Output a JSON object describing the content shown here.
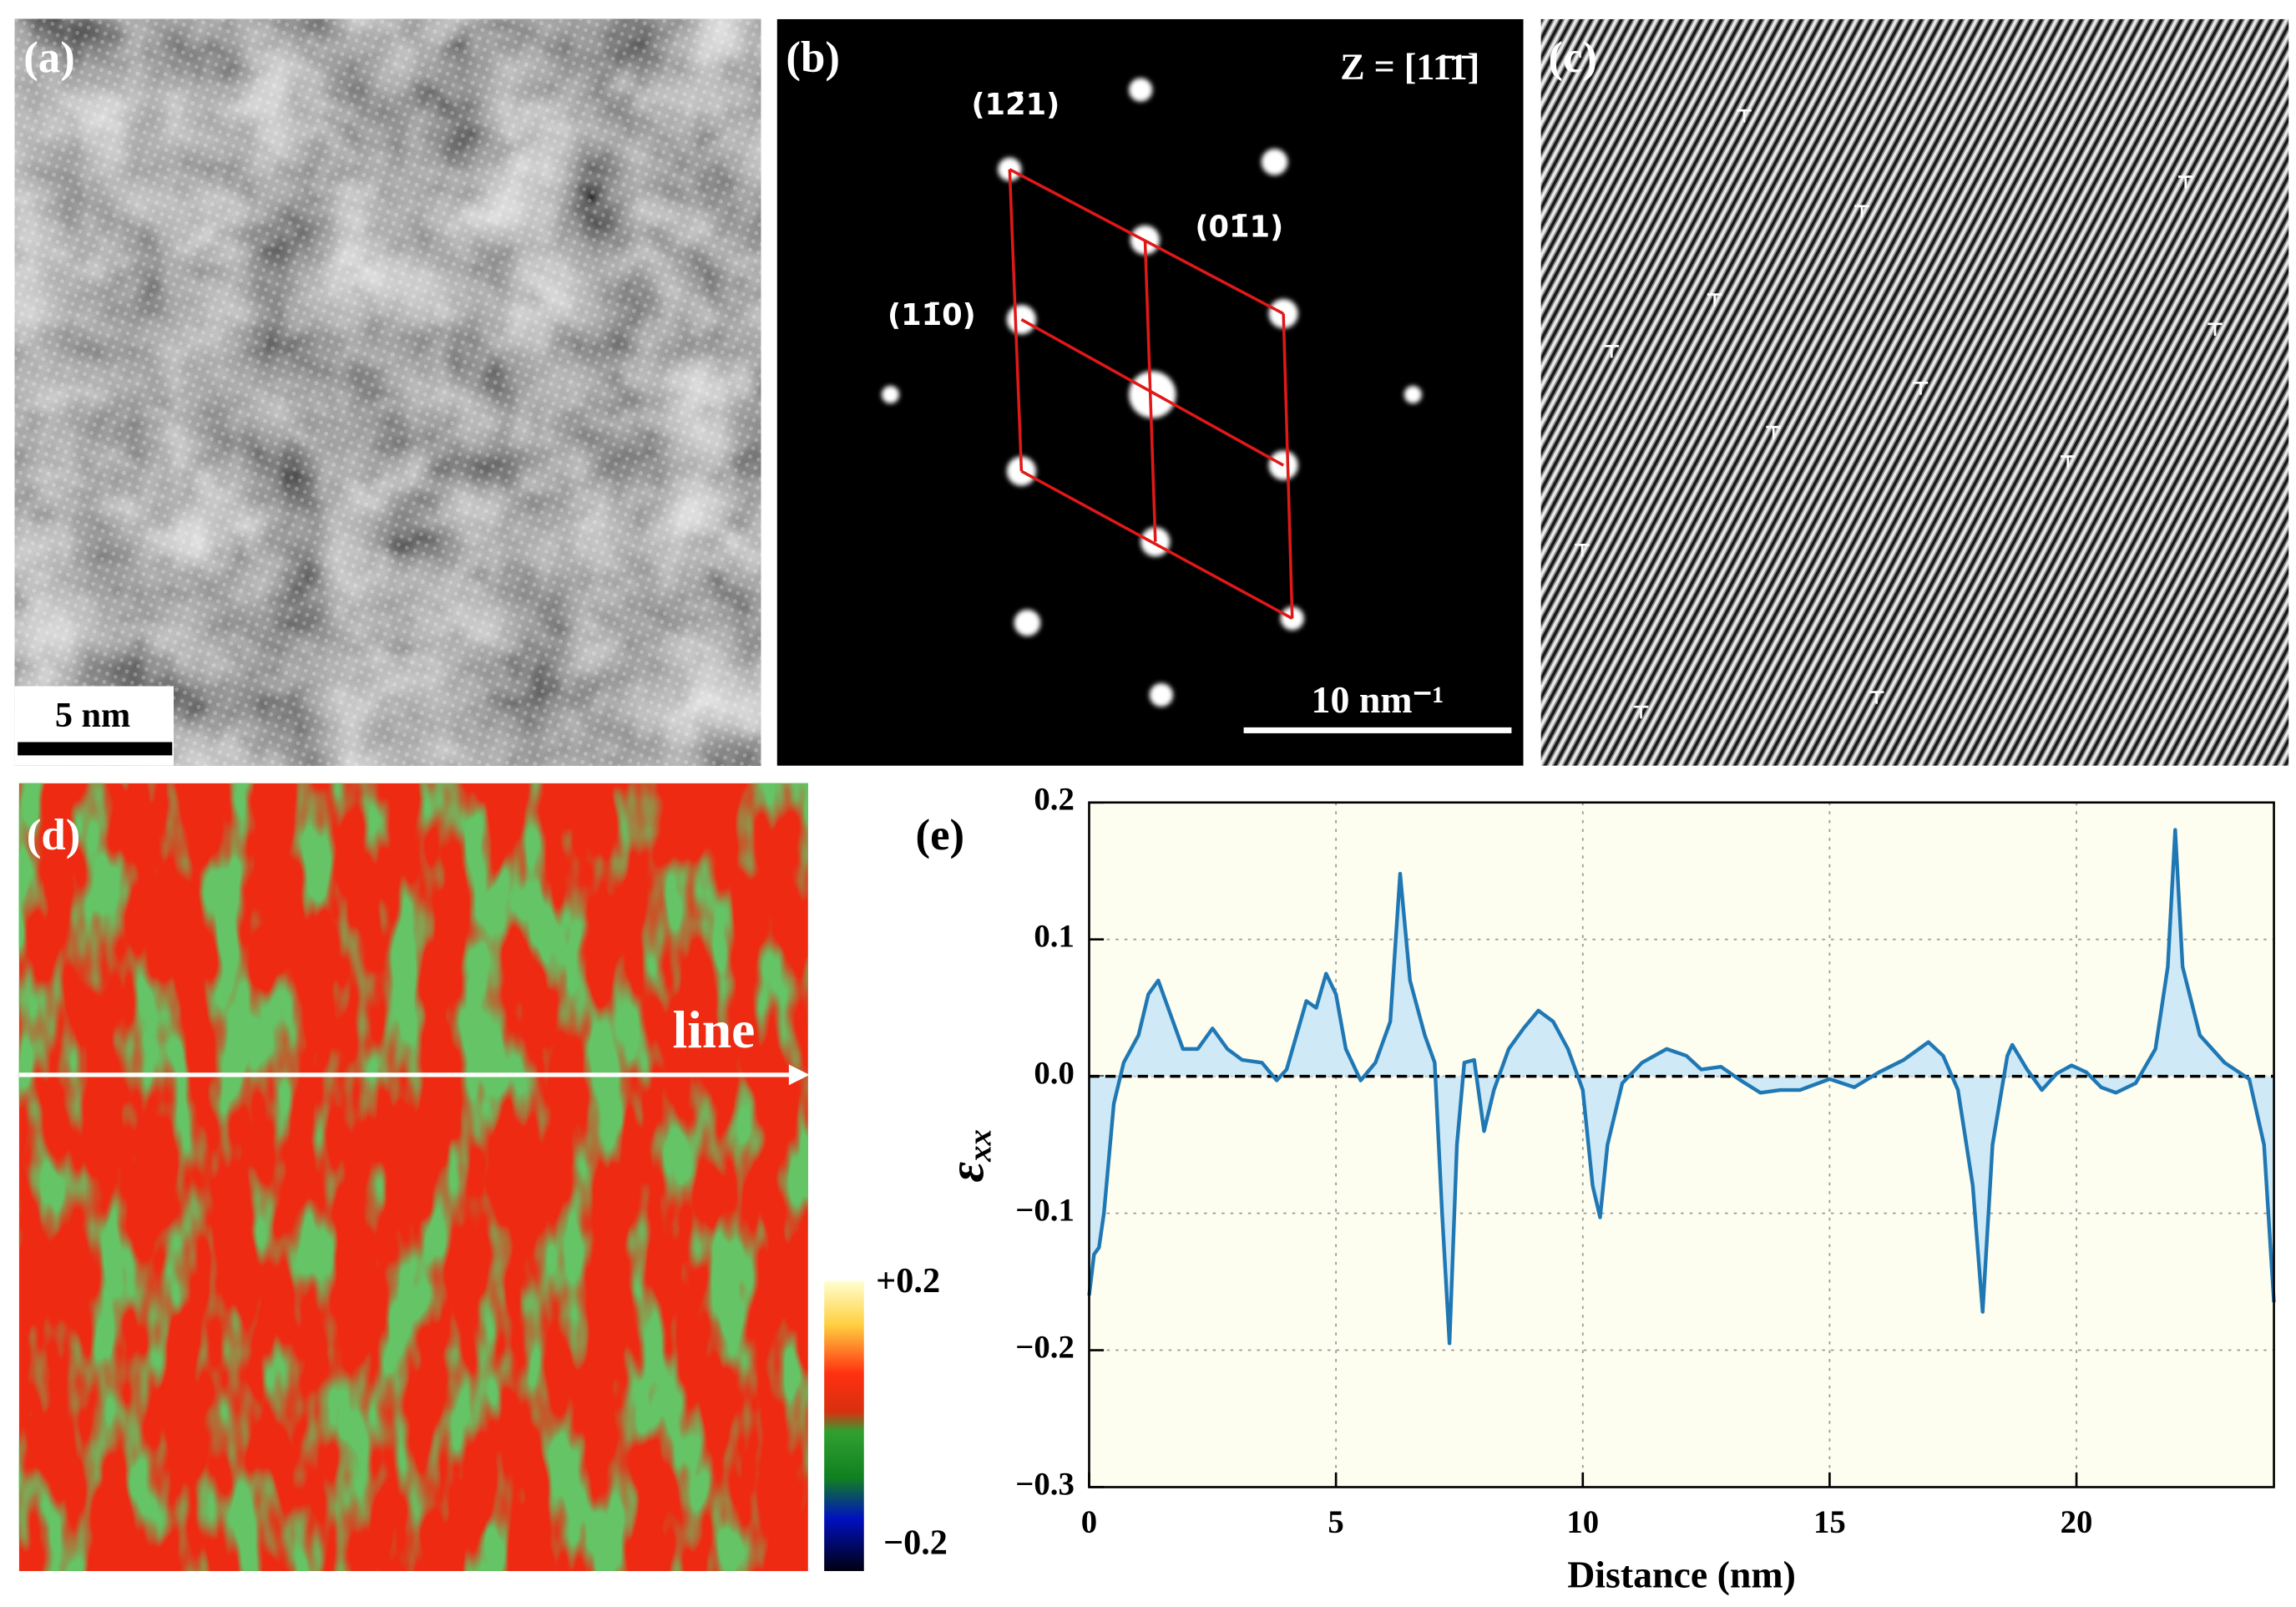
{
  "panels": {
    "a": {
      "label": "(a)",
      "scale_bar": "5 nm"
    },
    "b": {
      "label": "(b)",
      "zone_axis": "Z = [11̄1̄]",
      "spots": [
        "(12̄1)",
        "(01̄1)",
        "(11̄0)"
      ],
      "scale_bar": "10  nm⁻¹"
    },
    "c": {
      "label": "(c)"
    },
    "d": {
      "label": "(d)",
      "line_label": "line",
      "colorbar_max": "+0.2",
      "colorbar_min": "−0.2"
    },
    "e": {
      "label": "(e)"
    }
  },
  "chart_data": {
    "type": "line",
    "x_label": "Distance (nm)",
    "y_label": "ε",
    "y_label_sub": "xx",
    "color": "#1f78b4",
    "fill_color": "#cfe9f6",
    "background": "#fdfdf0",
    "grid": true,
    "zero_line": true,
    "xlim": [
      0,
      24
    ],
    "ylim": [
      -0.3,
      0.2
    ],
    "xticks": [
      0,
      5,
      10,
      15,
      20
    ],
    "yticks": [
      {
        "value": -0.3,
        "label": "−0.3"
      },
      {
        "value": -0.2,
        "label": "−0.2"
      },
      {
        "value": -0.1,
        "label": "−0.1"
      },
      {
        "value": 0,
        "label": "0.0"
      },
      0.1,
      0.2
    ],
    "x": [
      0,
      0.1,
      0.2,
      0.3,
      0.5,
      0.7,
      1.0,
      1.2,
      1.4,
      1.6,
      1.9,
      2.2,
      2.5,
      2.8,
      3.1,
      3.5,
      3.8,
      4.0,
      4.2,
      4.4,
      4.6,
      4.8,
      5.0,
      5.2,
      5.5,
      5.8,
      6.1,
      6.3,
      6.5,
      6.8,
      7.0,
      7.15,
      7.3,
      7.45,
      7.6,
      7.8,
      8.0,
      8.2,
      8.5,
      8.8,
      9.1,
      9.4,
      9.7,
      10.0,
      10.2,
      10.35,
      10.5,
      10.8,
      11.2,
      11.7,
      12.1,
      12.4,
      12.8,
      13.2,
      13.6,
      14.0,
      14.4,
      15.0,
      15.5,
      16.0,
      16.5,
      17.0,
      17.3,
      17.6,
      17.9,
      18.1,
      18.3,
      18.6,
      18.7,
      19.0,
      19.3,
      19.6,
      19.9,
      20.2,
      20.5,
      20.8,
      21.2,
      21.6,
      21.85,
      22.0,
      22.15,
      22.5,
      23.0,
      23.5,
      23.8,
      24.0
    ],
    "values": [
      -0.16,
      -0.13,
      -0.125,
      -0.1,
      -0.02,
      0.01,
      0.03,
      0.06,
      0.07,
      0.05,
      0.02,
      0.02,
      0.035,
      0.02,
      0.012,
      0.01,
      -0.003,
      0.005,
      0.03,
      0.055,
      0.05,
      0.075,
      0.06,
      0.02,
      -0.003,
      0.01,
      0.04,
      0.148,
      0.07,
      0.03,
      0.01,
      -0.1,
      -0.195,
      -0.05,
      0.01,
      0.012,
      -0.04,
      -0.01,
      0.02,
      0.035,
      0.048,
      0.04,
      0.02,
      -0.01,
      -0.08,
      -0.103,
      -0.05,
      -0.005,
      0.01,
      0.02,
      0.015,
      0.005,
      0.007,
      -0.003,
      -0.012,
      -0.01,
      -0.01,
      -0.002,
      -0.008,
      0.003,
      0.012,
      0.025,
      0.015,
      -0.01,
      -0.08,
      -0.172,
      -0.05,
      0.015,
      0.023,
      0.005,
      -0.01,
      0.002,
      0.008,
      0.003,
      -0.008,
      -0.012,
      -0.005,
      0.02,
      0.08,
      0.18,
      0.08,
      0.03,
      0.01,
      -0.002,
      -0.05,
      -0.165
    ]
  }
}
